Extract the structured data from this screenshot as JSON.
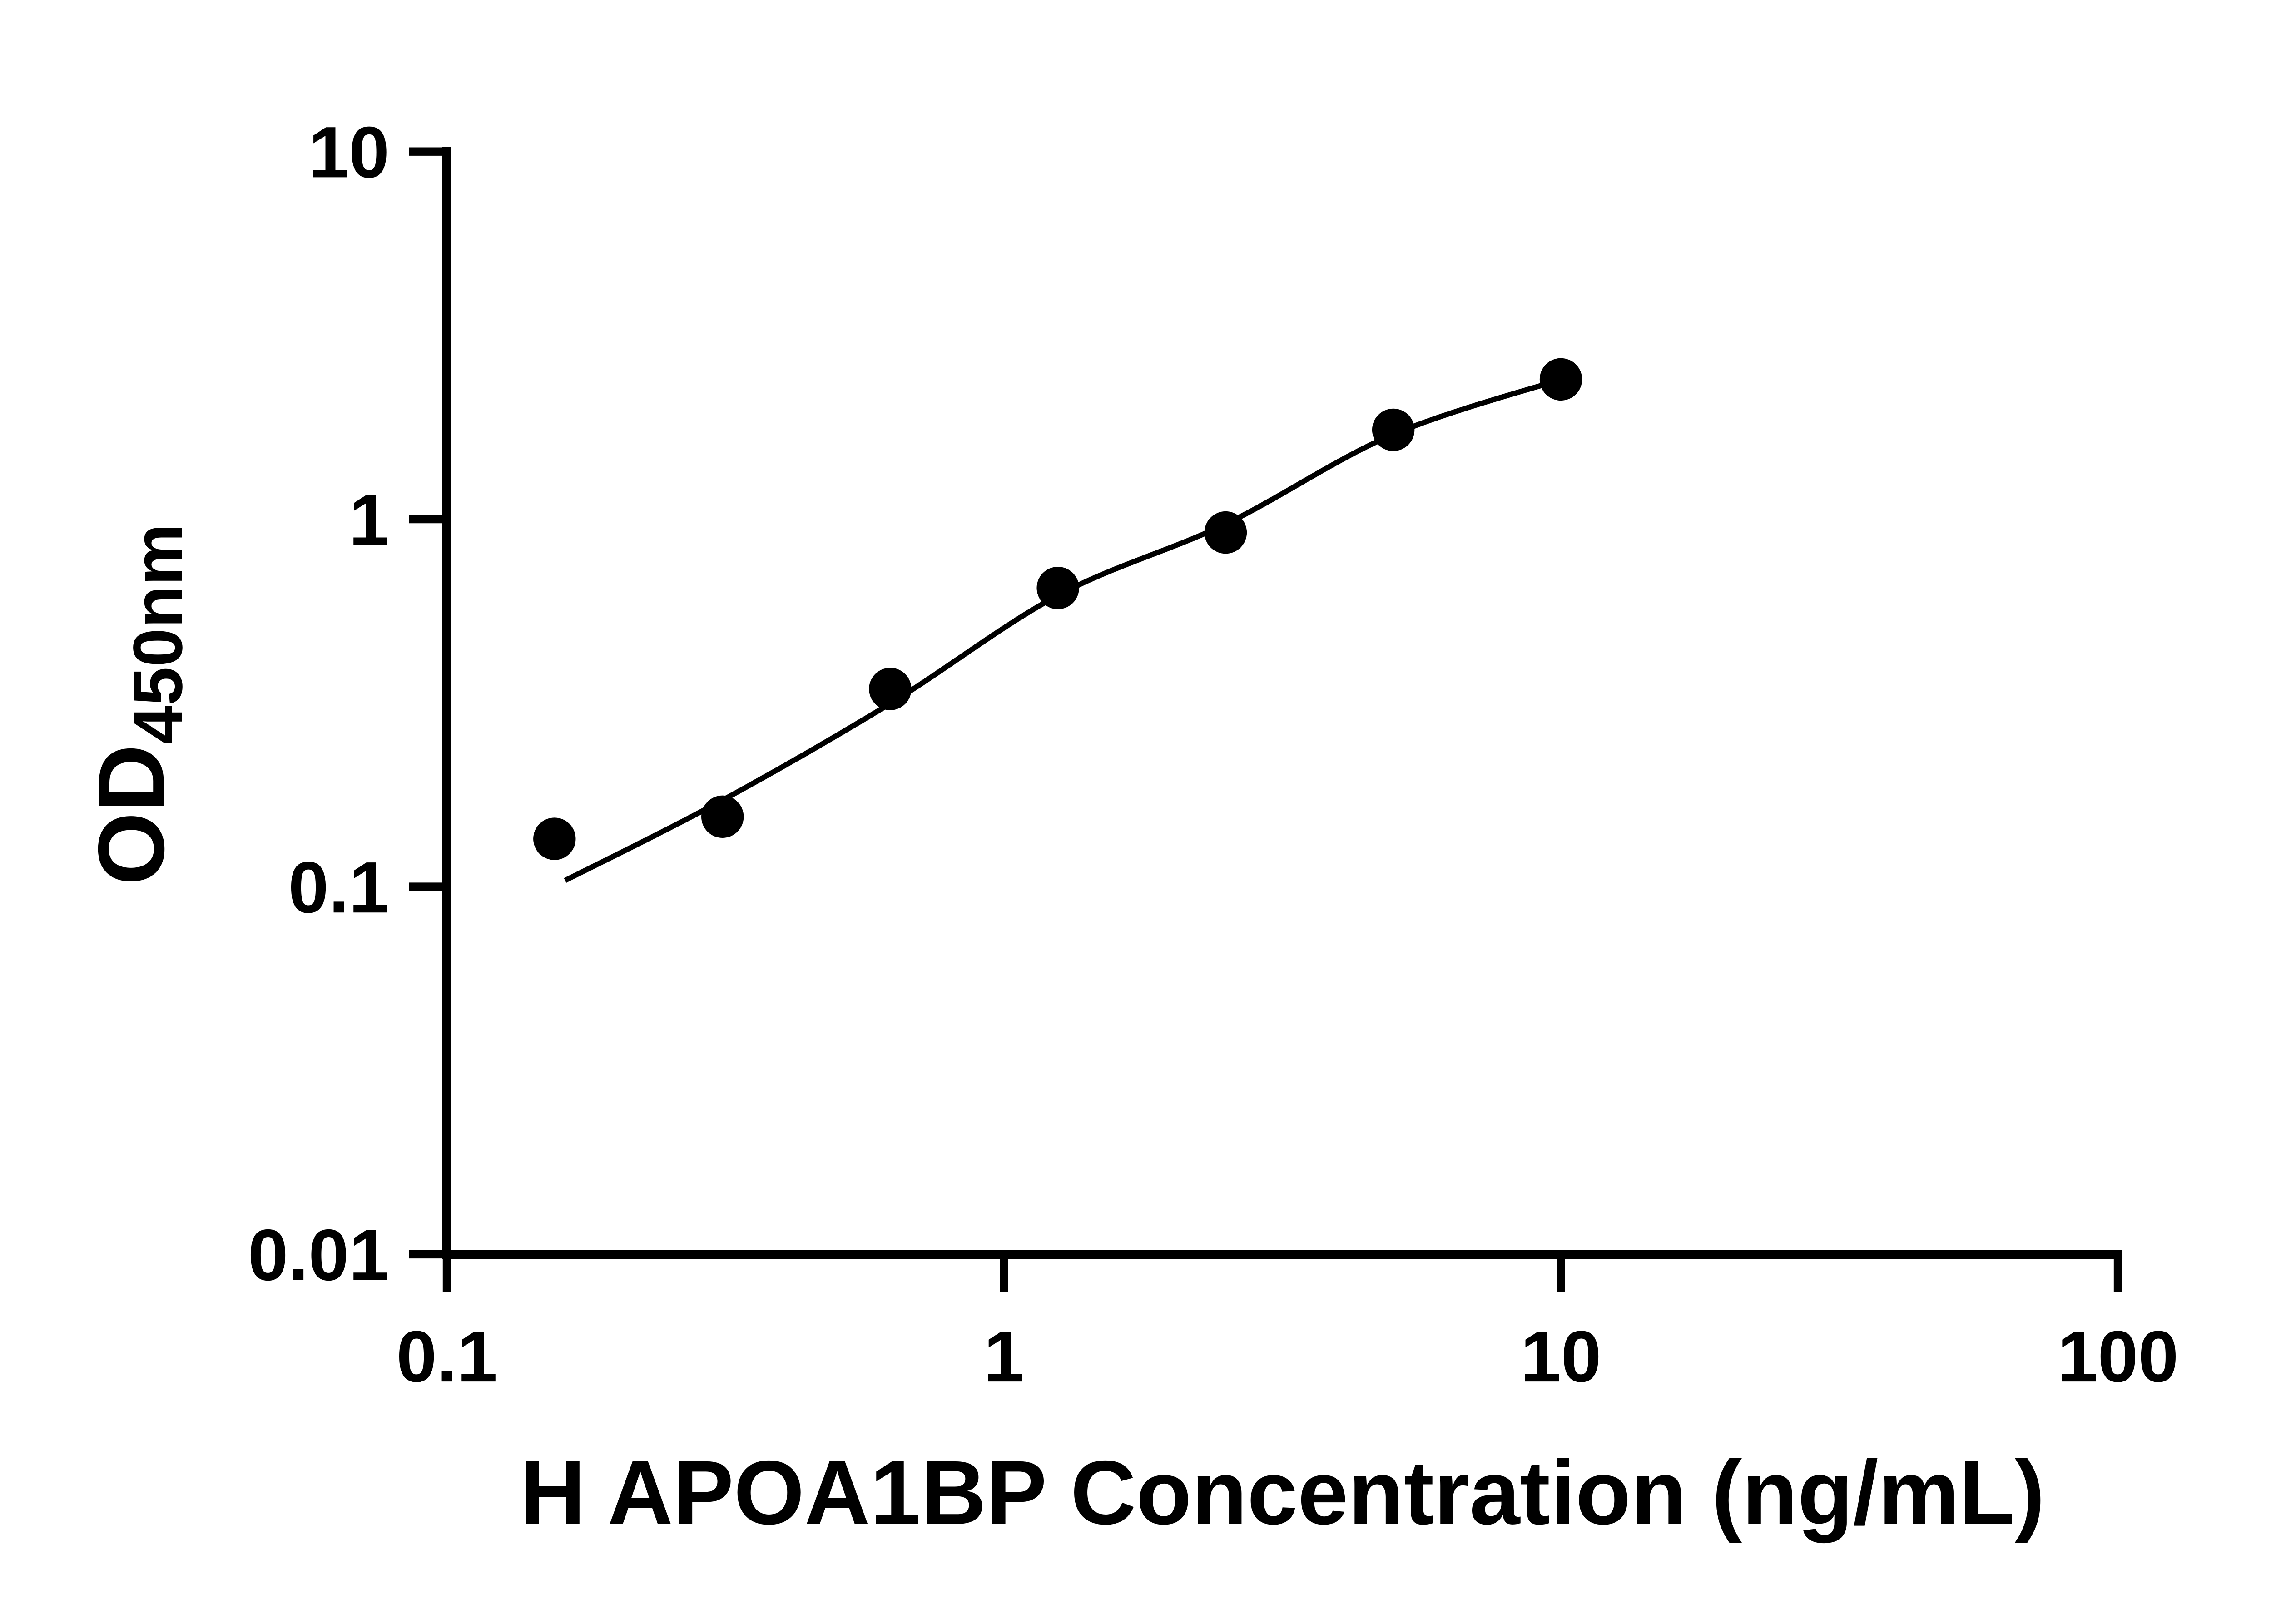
{
  "colors": {
    "ink": "#000000",
    "background": "#ffffff"
  },
  "chart_data": {
    "type": "scatter",
    "xlabel": "H APOA1BP Concentration (ng/mL)",
    "ylabel": "OD450nm",
    "ylabel_main": "OD",
    "ylabel_sub": "450nm",
    "x_scale": "log",
    "y_scale": "log",
    "xlim": [
      0.1,
      100
    ],
    "ylim": [
      0.01,
      10
    ],
    "x_ticks": [
      0.1,
      1,
      10,
      100
    ],
    "x_tick_labels": [
      "0.1",
      "1",
      "10",
      "100"
    ],
    "y_ticks": [
      0.01,
      0.1,
      1,
      10
    ],
    "y_tick_labels": [
      "0.01",
      "0.1",
      "1",
      "10"
    ],
    "grid": false,
    "legend": false,
    "series": [
      {
        "marker": "filled-circle",
        "x": [
          0.156,
          0.3125,
          0.625,
          1.25,
          2.5,
          5,
          10
        ],
        "y": [
          0.135,
          0.155,
          0.345,
          0.65,
          0.92,
          1.75,
          2.4
        ]
      }
    ],
    "fit_curve": {
      "x": [
        0.163,
        0.3125,
        0.625,
        1.25,
        2.5,
        5,
        10.6
      ],
      "y": [
        0.104,
        0.172,
        0.315,
        0.62,
        0.97,
        1.7,
        2.46
      ]
    },
    "style": {
      "marker_color": "#000000",
      "marker_radius": 14,
      "curve_color": "#000000",
      "curve_width": 3.5,
      "axis_width": 6,
      "tick_width": 5.5,
      "tick_length": 22,
      "tick_label_size": 48,
      "axis_title_size": 60,
      "y_title_main_size": 62,
      "y_title_sub_size": 46
    }
  }
}
